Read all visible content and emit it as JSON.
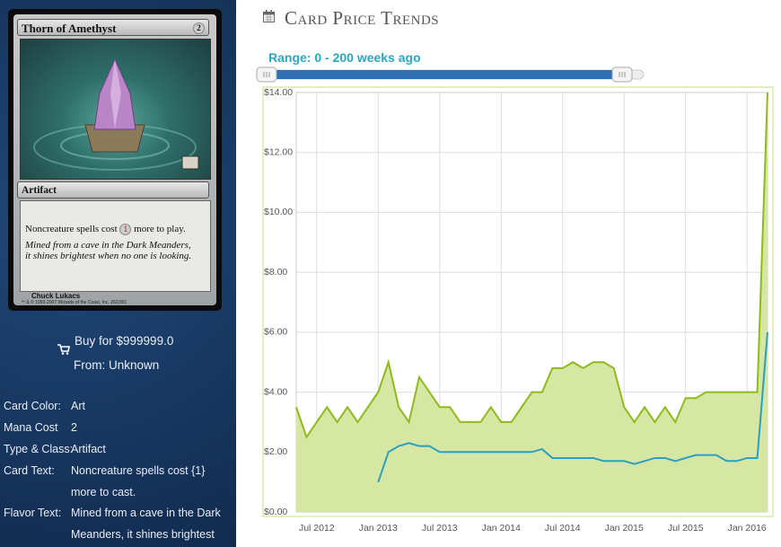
{
  "card": {
    "name": "Thorn of Amethyst",
    "cost": "2",
    "type": "Artifact",
    "rules_before": "Noncreature spells cost",
    "rules_symbol": "1",
    "rules_after": "more to play.",
    "flavor": [
      "Mined from a cave in the Dark Meanders,",
      "it shines brightest when no one is looking."
    ],
    "artist": "Chuck Lukacs",
    "copyright": "™ & © 1993-2007 Wizards of the Coast, Inc. 262/301"
  },
  "buy": {
    "price": "Buy for $999999.0",
    "source": "From: Unknown"
  },
  "info": [
    [
      "Card Color:",
      "Art"
    ],
    [
      "Mana Cost",
      "2"
    ],
    [
      "Type & Class:",
      "Artifact"
    ],
    [
      "Card Text:",
      "Noncreature spells cost {1} more to cast."
    ],
    [
      "Flavor Text:",
      "Mined from a cave in the Dark Meanders, it shines brightest"
    ]
  ],
  "header": {
    "title": "Card Price Trends",
    "range": "Range: 0 - 200 weeks ago"
  },
  "chart_data": {
    "type": "line",
    "grid": true,
    "x": [
      "2012-05",
      "2012-06",
      "2012-07",
      "2012-08",
      "2012-09",
      "2012-10",
      "2012-11",
      "2012-12",
      "2013-01",
      "2013-02",
      "2013-03",
      "2013-04",
      "2013-05",
      "2013-06",
      "2013-07",
      "2013-08",
      "2013-09",
      "2013-10",
      "2013-11",
      "2013-12",
      "2014-01",
      "2014-02",
      "2014-03",
      "2014-04",
      "2014-05",
      "2014-06",
      "2014-07",
      "2014-08",
      "2014-09",
      "2014-10",
      "2014-11",
      "2014-12",
      "2015-01",
      "2015-02",
      "2015-03",
      "2015-04",
      "2015-05",
      "2015-06",
      "2015-07",
      "2015-08",
      "2015-09",
      "2015-10",
      "2015-11",
      "2015-12",
      "2016-01",
      "2016-02",
      "2016-03"
    ],
    "xlim": [
      "2012-05",
      "2016-03"
    ],
    "xticks": [
      {
        "value": "2012-07",
        "label": "Jul 2012"
      },
      {
        "value": "2013-01",
        "label": "Jan 2013"
      },
      {
        "value": "2013-07",
        "label": "Jul 2013"
      },
      {
        "value": "2014-01",
        "label": "Jan 2014"
      },
      {
        "value": "2014-07",
        "label": "Jul 2014"
      },
      {
        "value": "2015-01",
        "label": "Jan 2015"
      },
      {
        "value": "2015-07",
        "label": "Jul 2015"
      },
      {
        "value": "2016-01",
        "label": "Jan 2016"
      }
    ],
    "ylim": [
      0,
      14
    ],
    "yticks": [
      {
        "value": 0,
        "label": "$0.00"
      },
      {
        "value": 2,
        "label": "$2.00"
      },
      {
        "value": 4,
        "label": "$4.00"
      },
      {
        "value": 6,
        "label": "$6.00"
      },
      {
        "value": 8,
        "label": "$8.00"
      },
      {
        "value": 10,
        "label": "$10.00"
      },
      {
        "value": 12,
        "label": "$12.00"
      },
      {
        "value": 14,
        "label": "$14.00"
      }
    ],
    "series": [
      {
        "color": "#8fba1d",
        "fill": "#d5e7a2",
        "values": [
          3.5,
          2.5,
          3.0,
          3.5,
          3.0,
          3.5,
          3.0,
          3.5,
          4.0,
          5.0,
          3.5,
          3.0,
          4.5,
          4.0,
          3.5,
          3.5,
          3.0,
          3.0,
          3.0,
          3.5,
          3.0,
          3.0,
          3.5,
          4.0,
          4.0,
          4.8,
          4.8,
          5.0,
          4.8,
          5.0,
          5.0,
          4.8,
          3.5,
          3.0,
          3.5,
          3.0,
          3.5,
          3.0,
          3.8,
          3.8,
          4.0,
          4.0,
          4.0,
          4.0,
          4.0,
          4.0,
          14.0
        ]
      },
      {
        "color": "#2b9fc2",
        "values": [
          null,
          null,
          null,
          null,
          null,
          null,
          null,
          null,
          1.0,
          2.0,
          2.2,
          2.3,
          2.2,
          2.2,
          2.0,
          2.0,
          2.0,
          2.0,
          2.0,
          2.0,
          2.0,
          2.0,
          2.0,
          2.0,
          2.1,
          1.8,
          1.8,
          1.8,
          1.8,
          1.8,
          1.7,
          1.7,
          1.7,
          1.6,
          1.7,
          1.8,
          1.8,
          1.7,
          1.8,
          1.9,
          1.9,
          1.9,
          1.7,
          1.7,
          1.8,
          1.8,
          6.0
        ]
      }
    ]
  }
}
